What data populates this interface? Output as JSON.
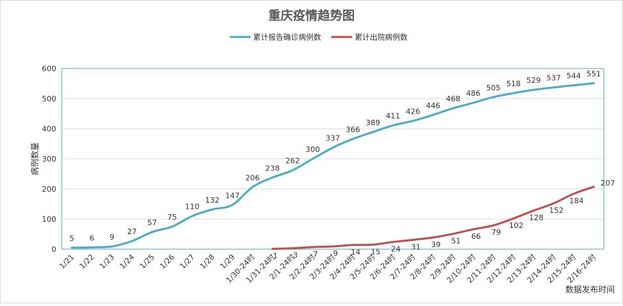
{
  "chart_data": {
    "type": "line",
    "title": "重庆疫情趋势图",
    "xlabel": "数据发布时间",
    "ylabel": "病例数量",
    "ylim": [
      0,
      600
    ],
    "yticks": [
      "0",
      "100",
      "200",
      "300",
      "400",
      "500",
      "600"
    ],
    "grid": true,
    "legend_position": "top-center",
    "categories": [
      "1/21",
      "1/22",
      "1/23",
      "1/24",
      "1/25",
      "1/26",
      "1/27",
      "1/28",
      "1/29",
      "1/30-24时",
      "1/31-24时",
      "2/1-24时",
      "2/2-24时",
      "2/3-24时",
      "2/4-24时",
      "2/5-24时",
      "2/6-24时",
      "2/7-24时",
      "2/8-24时",
      "2/9-24时",
      "2/10-24时",
      "2/11-24时",
      "2/12-24时",
      "2/13-24时",
      "2/14-24时",
      "2/15-24时",
      "2/16-24时"
    ],
    "series": [
      {
        "name": "累计报告确诊病例数",
        "color": "#4bacc6",
        "values": [
          5,
          6,
          9,
          27,
          57,
          75,
          110,
          132,
          147,
          206,
          238,
          262,
          300,
          337,
          366,
          389,
          411,
          426,
          446,
          468,
          486,
          505,
          518,
          529,
          537,
          544,
          551
        ],
        "labels": [
          "5",
          "6",
          "9",
          "27",
          "57",
          "75",
          "110",
          "132",
          "147",
          "206",
          "238",
          "262",
          "300",
          "337",
          "366",
          "389",
          "411",
          "426",
          "446",
          "468",
          "486",
          "505",
          "518",
          "529",
          "537",
          "544",
          "551"
        ]
      },
      {
        "name": "累计出院病例数",
        "color": "#c0504d",
        "values": [
          null,
          null,
          null,
          null,
          null,
          null,
          null,
          null,
          null,
          null,
          1,
          3,
          7,
          9,
          14,
          15,
          24,
          31,
          39,
          51,
          66,
          79,
          102,
          128,
          152,
          184,
          207
        ],
        "labels": [
          "",
          "",
          "",
          "",
          "",
          "",
          "",
          "",
          "",
          "",
          "1",
          "3",
          "7",
          "9",
          "14",
          "15",
          "24",
          "31",
          "39",
          "51",
          "66",
          "79",
          "102",
          "128",
          "152",
          "184",
          "207"
        ]
      }
    ]
  }
}
